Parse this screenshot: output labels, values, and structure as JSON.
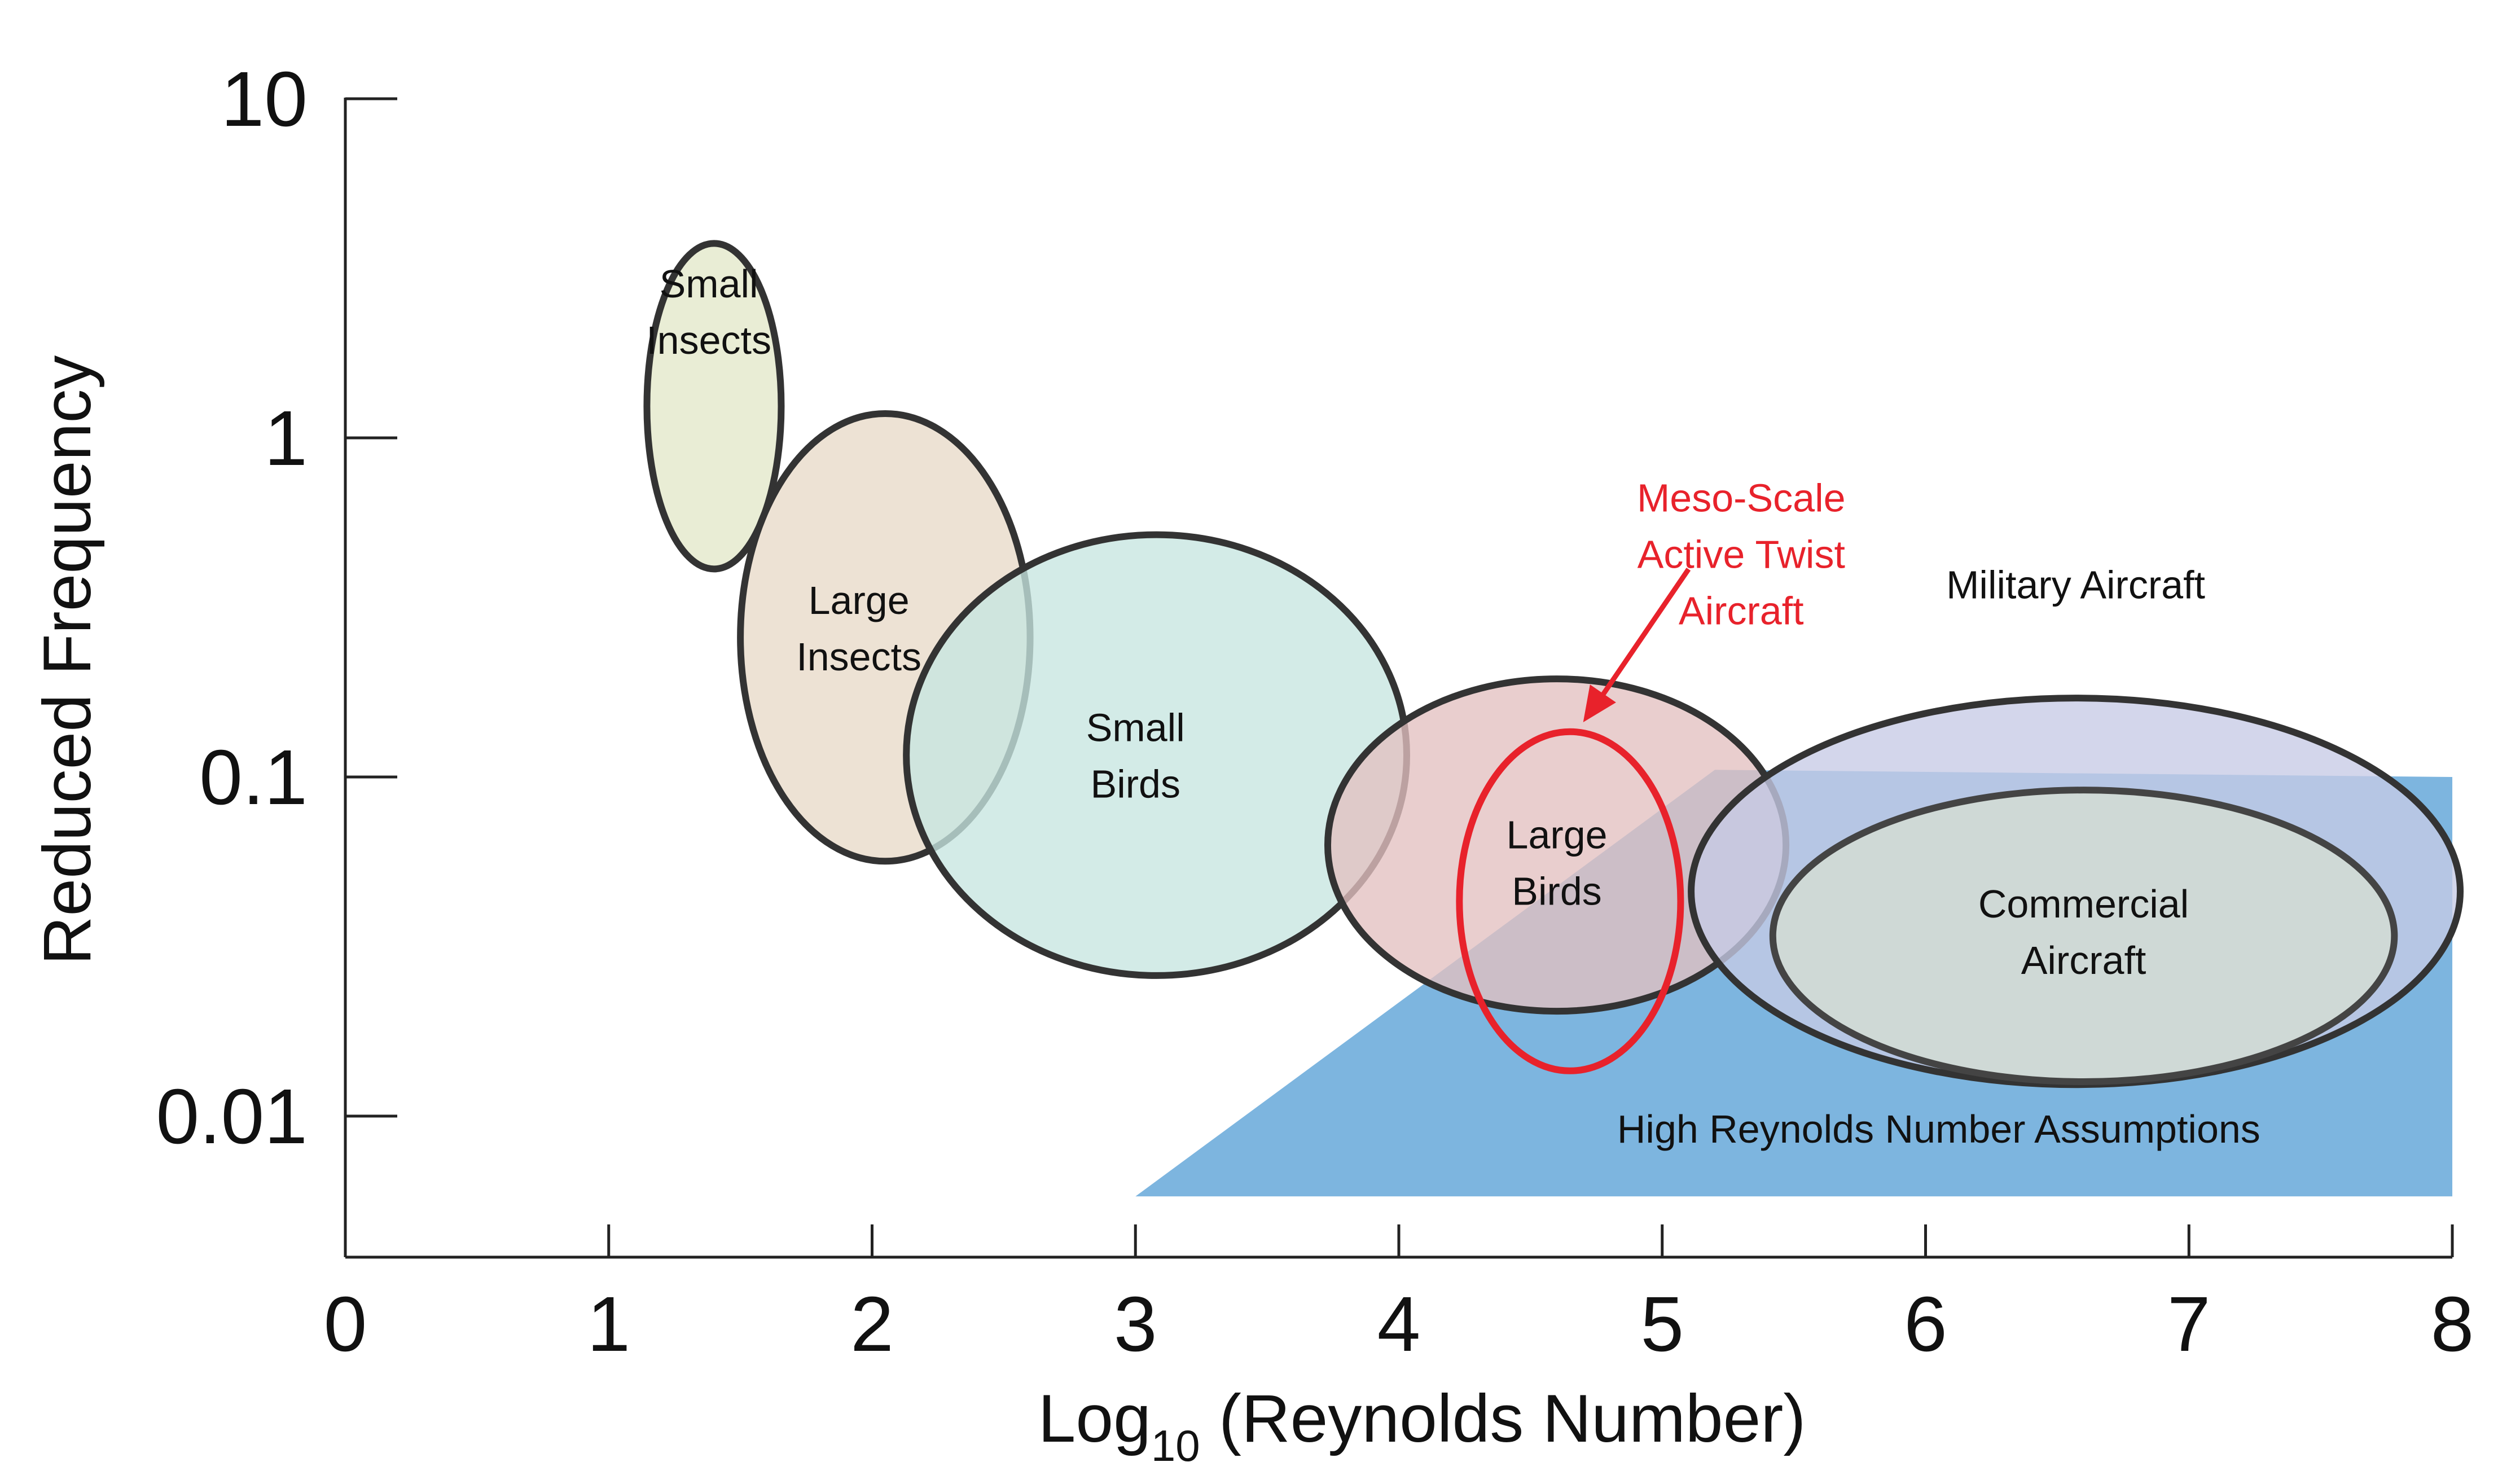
{
  "chart_data": {
    "type": "scatter",
    "xlabel_main": "Log",
    "xlabel_sub": "10",
    "xlabel_rest": " (Reynolds Number)",
    "ylabel": "Reduced Frequency",
    "xlim": [
      0,
      8
    ],
    "ylim": [
      0.005,
      10
    ],
    "y_scale": "log",
    "x_ticks": [
      0,
      1,
      2,
      3,
      4,
      5,
      6,
      7,
      8
    ],
    "x_tick_labels": [
      "0",
      "1",
      "2",
      "3",
      "4",
      "5",
      "6",
      "7",
      "8"
    ],
    "y_ticks": [
      10,
      1,
      0.1,
      0.01
    ],
    "y_tick_labels": [
      "10",
      "1",
      "0.1",
      "0.01"
    ],
    "high_re_region": {
      "label": "High Reynolds Number Assumptions",
      "color": "#7db5df",
      "polygon": [
        [
          3.0,
          0.0058
        ],
        [
          5.2,
          0.105
        ],
        [
          8.0,
          0.1
        ],
        [
          8.0,
          0.0058
        ]
      ]
    },
    "regions": [
      {
        "name": "small-insects",
        "label_lines": [
          "Small",
          "Insects"
        ],
        "cx": 1.4,
        "cy": 1.24,
        "rx_log": 0.255,
        "ry_decades": 0.48,
        "fill": "#e3e8c9",
        "stroke": "#333333",
        "label_at": [
          1.38,
          2.36
        ],
        "label_outside": true
      },
      {
        "name": "large-insects",
        "label_lines": [
          "Large",
          "Insects"
        ],
        "cx": 2.05,
        "cy": 0.258,
        "rx_log": 0.55,
        "ry_decades": 0.66,
        "fill": "#e8dac8",
        "stroke": "#333333",
        "label_at": [
          1.95,
          0.275
        ],
        "label_outside": false
      },
      {
        "name": "small-birds",
        "label_lines": [
          "Small",
          "Birds"
        ],
        "cx": 3.08,
        "cy": 0.116,
        "rx_log": 0.95,
        "ry_decades": 0.65,
        "fill": "#c6e6e0",
        "stroke": "#333333",
        "label_at": [
          3.0,
          0.116
        ],
        "label_outside": false
      },
      {
        "name": "large-birds",
        "label_lines": [
          "Large",
          "Birds"
        ],
        "cx": 4.6,
        "cy": 0.063,
        "rx_log": 0.87,
        "ry_decades": 0.49,
        "fill": "#e3c0c0",
        "stroke": "#333333",
        "label_at": [
          4.6,
          0.056
        ],
        "label_outside": false
      },
      {
        "name": "military-aircraft",
        "label_lines": [
          "Military Aircraft"
        ],
        "cx": 6.57,
        "cy": 0.046,
        "rx_log": 1.46,
        "ry_decades": 0.57,
        "fill": "#c7cbe6",
        "stroke": "#333333",
        "label_at": [
          6.57,
          0.37
        ],
        "label_outside": true
      },
      {
        "name": "commercial-aircraft",
        "label_lines": [
          "Commercial",
          "Aircraft"
        ],
        "cx": 6.6,
        "cy": 0.034,
        "rx_log": 1.18,
        "ry_decades": 0.43,
        "fill": "#d6ded2",
        "stroke": "#444444",
        "label_at": [
          6.6,
          0.035
        ],
        "label_outside": false
      }
    ],
    "highlight": {
      "name": "meso-scale-active-twist-aircraft",
      "label_lines": [
        "Meso-Scale",
        "Active Twist",
        "Aircraft"
      ],
      "color": "#e8222b",
      "cx": 4.65,
      "cy": 0.043,
      "rx_log": 0.42,
      "ry_decades": 0.5,
      "label_at": [
        5.3,
        0.455
      ],
      "arrow_from": [
        5.1,
        0.41
      ],
      "arrow_to": [
        4.7,
        0.145
      ]
    }
  }
}
